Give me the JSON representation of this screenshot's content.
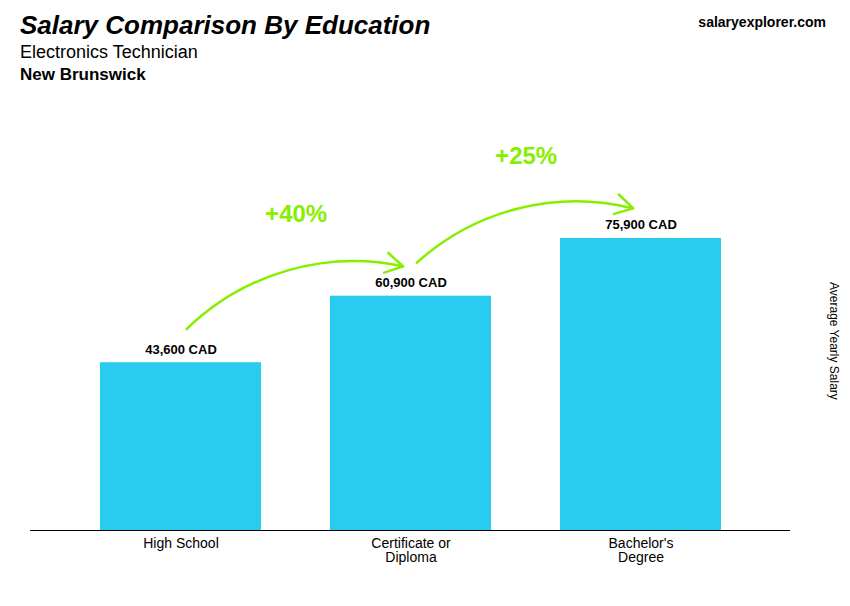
{
  "chart_data": {
    "type": "bar",
    "title": "Salary Comparison By Education",
    "subtitle": [
      "Electronics Technician",
      "New Brunswick"
    ],
    "categories": [
      "High School",
      "Certificate or\nDiploma",
      "Bachelor's\nDegree"
    ],
    "values": [
      43600,
      60900,
      75900
    ],
    "value_labels": [
      "43,600 CAD",
      "60,900 CAD",
      "75,900 CAD"
    ],
    "data_labels": true,
    "color": "#29ccee",
    "ylabel": "Average Yearly Salary",
    "ylim": [
      0,
      92000
    ],
    "tick_labels": "x",
    "grid": false,
    "annotations": [
      {
        "text": "+40%",
        "from": "High School",
        "to": "Certificate or\nDiploma",
        "color": "#88ee00"
      },
      {
        "text": "+25%",
        "from": "Certificate or\nDiploma",
        "to": "Bachelor's\nDegree",
        "color": "#88ee00"
      },
      {
        "text": "salaryexplorer.com"
      }
    ]
  }
}
